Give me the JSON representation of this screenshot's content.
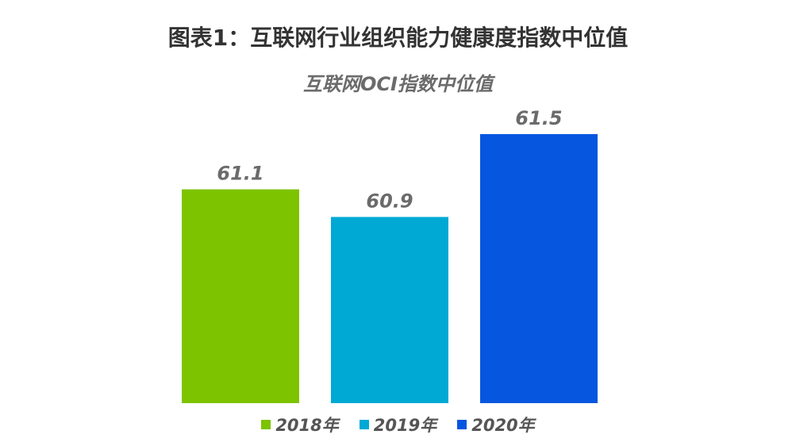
{
  "title": "图表1：互联网行业组织能力健康度指数中位值",
  "chart_data": {
    "type": "bar",
    "title": "互联网OCI指数中位值",
    "categories": [
      "2018年",
      "2019年",
      "2020年"
    ],
    "values": [
      61.1,
      60.9,
      61.5
    ],
    "value_labels": [
      "61.1",
      "60.9",
      "61.5"
    ],
    "colors": [
      "#7dc300",
      "#00a9d4",
      "#0656e0"
    ],
    "legend": [
      "2018年",
      "2019年",
      "2020年"
    ],
    "legend_position": "bottom",
    "grid": false
  }
}
